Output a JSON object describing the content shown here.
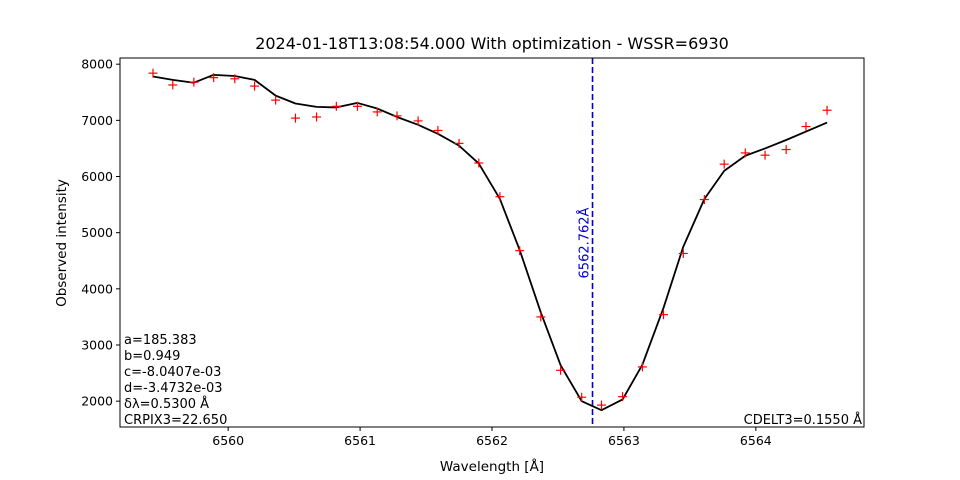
{
  "chart_data": {
    "type": "line",
    "title": "2024-01-18T13:08:54.000 With optimization - WSSR=6930",
    "xlabel": "Wavelength [Å]",
    "ylabel": "Observed intensity",
    "xlim": [
      6559.18,
      6564.82
    ],
    "ylim": [
      1540,
      8110
    ],
    "x_ticks": [
      6560,
      6561,
      6562,
      6563,
      6564
    ],
    "x_tick_labels": [
      "6560",
      "6561",
      "6562",
      "6563",
      "6564"
    ],
    "y_ticks": [
      2000,
      3000,
      4000,
      5000,
      6000,
      7000,
      8000
    ],
    "y_tick_labels": [
      "2000",
      "3000",
      "4000",
      "5000",
      "6000",
      "7000",
      "8000"
    ],
    "grid": false,
    "series": [
      {
        "kind": "markers",
        "marker": "+",
        "color": "#ff0000",
        "points": [
          [
            6559.43,
            7840
          ],
          [
            6559.58,
            7630
          ],
          [
            6559.74,
            7680
          ],
          [
            6559.89,
            7760
          ],
          [
            6560.05,
            7740
          ],
          [
            6560.2,
            7610
          ],
          [
            6560.36,
            7360
          ],
          [
            6560.51,
            7040
          ],
          [
            6560.67,
            7060
          ],
          [
            6560.82,
            7250
          ],
          [
            6560.98,
            7250
          ],
          [
            6561.13,
            7150
          ],
          [
            6561.28,
            7080
          ],
          [
            6561.44,
            6990
          ],
          [
            6561.59,
            6820
          ],
          [
            6561.75,
            6590
          ],
          [
            6561.9,
            6240
          ],
          [
            6562.06,
            5640
          ],
          [
            6562.21,
            4680
          ],
          [
            6562.37,
            3500
          ],
          [
            6562.52,
            2550
          ],
          [
            6562.68,
            2070
          ],
          [
            6562.83,
            1930
          ],
          [
            6562.99,
            2080
          ],
          [
            6563.14,
            2610
          ],
          [
            6563.3,
            3540
          ],
          [
            6563.45,
            4630
          ],
          [
            6563.61,
            5590
          ],
          [
            6563.76,
            6220
          ],
          [
            6563.92,
            6420
          ],
          [
            6564.07,
            6380
          ],
          [
            6564.23,
            6480
          ],
          [
            6564.38,
            6890
          ],
          [
            6564.54,
            7180
          ]
        ]
      },
      {
        "kind": "line",
        "color": "#000000",
        "points": [
          [
            6559.43,
            7780
          ],
          [
            6559.58,
            7720
          ],
          [
            6559.74,
            7670
          ],
          [
            6559.89,
            7810
          ],
          [
            6560.05,
            7790
          ],
          [
            6560.2,
            7720
          ],
          [
            6560.36,
            7440
          ],
          [
            6560.51,
            7300
          ],
          [
            6560.67,
            7240
          ],
          [
            6560.82,
            7230
          ],
          [
            6560.98,
            7310
          ],
          [
            6561.13,
            7210
          ],
          [
            6561.28,
            7060
          ],
          [
            6561.44,
            6920
          ],
          [
            6561.59,
            6760
          ],
          [
            6561.75,
            6550
          ],
          [
            6561.9,
            6230
          ],
          [
            6562.06,
            5600
          ],
          [
            6562.21,
            4690
          ],
          [
            6562.37,
            3580
          ],
          [
            6562.52,
            2640
          ],
          [
            6562.68,
            2000
          ],
          [
            6562.83,
            1840
          ],
          [
            6562.99,
            2030
          ],
          [
            6563.14,
            2650
          ],
          [
            6563.3,
            3660
          ],
          [
            6563.45,
            4750
          ],
          [
            6563.61,
            5600
          ],
          [
            6563.76,
            6100
          ],
          [
            6563.92,
            6370
          ],
          [
            6564.07,
            6500
          ],
          [
            6564.23,
            6650
          ],
          [
            6564.38,
            6800
          ],
          [
            6564.54,
            6960
          ]
        ]
      }
    ],
    "vline": {
      "x": 6562.762,
      "label": "6562.762Å",
      "color": "#0000cc",
      "style": "dashed"
    },
    "annotations_left": [
      "a=185.383",
      "b=0.949",
      "c=-8.0407e-03",
      "d=-3.4732e-03",
      "δλ=0.5300 Å",
      "CRPIX3=22.650"
    ],
    "annotation_right": "CDELT3=0.1550 Å"
  }
}
